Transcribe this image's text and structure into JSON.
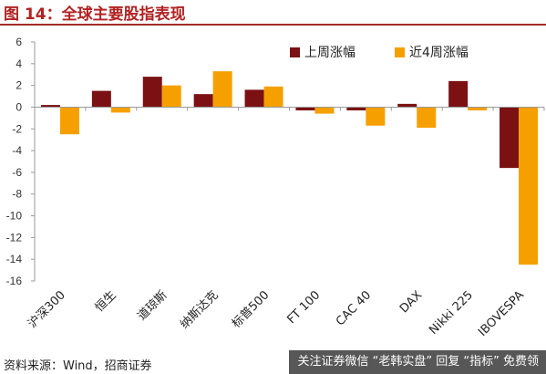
{
  "figure_title": "图 14：全球主要股指表现",
  "source_note": "资料来源：Wind，招商证券",
  "footer_banner": "关注证券微信 “老韩实盘” 回复 “指标” 免费领",
  "colors": {
    "accent": "#a52a2a",
    "series_1": "#7b1113",
    "series_2": "#f5a000"
  },
  "chart_data": {
    "type": "bar",
    "categories": [
      "沪深300",
      "恒生",
      "道琼斯",
      "纳斯达克",
      "标普500",
      "FT 100",
      "CAC 40",
      "DAX",
      "Nikki 225",
      "IBOVESPA"
    ],
    "series": [
      {
        "name": "上周涨幅",
        "values": [
          0.2,
          1.5,
          2.8,
          1.2,
          1.6,
          -0.3,
          -0.3,
          0.3,
          2.4,
          -5.6
        ]
      },
      {
        "name": "近4周涨幅",
        "values": [
          -2.5,
          -0.5,
          2.0,
          3.3,
          1.9,
          -0.6,
          -1.7,
          -1.9,
          -0.3,
          -14.5
        ]
      }
    ],
    "title": "",
    "xlabel": "",
    "ylabel": "",
    "ylim": [
      -16,
      6
    ],
    "yticks": [
      6,
      4,
      2,
      0,
      -2,
      -4,
      -6,
      -8,
      -10,
      -12,
      -14,
      -16
    ],
    "grid": false,
    "legend_position": "top-right"
  }
}
